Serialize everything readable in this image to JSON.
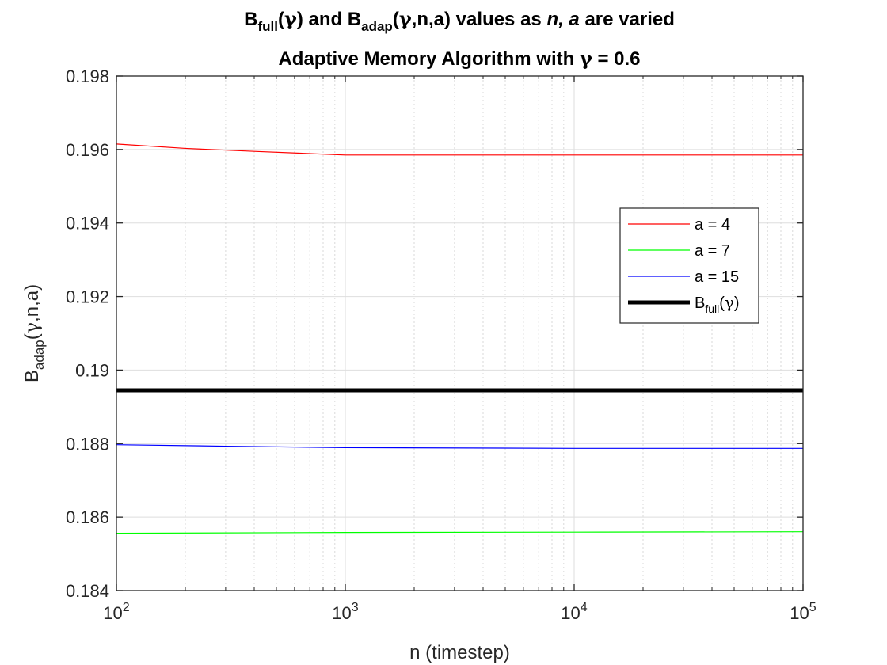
{
  "chart_data": {
    "type": "line",
    "title_lines": [
      [
        {
          "t": "B"
        },
        {
          "t": "full",
          "sub": true
        },
        {
          "t": "("
        },
        {
          "t": "γ",
          "sym": true
        },
        {
          "t": ") and B"
        },
        {
          "t": "adap",
          "sub": true
        },
        {
          "t": "("
        },
        {
          "t": "γ",
          "sym": true
        },
        {
          "t": ",n,a) values as  "
        },
        {
          "t": "n, a",
          "italic": true
        },
        {
          "t": " are varied"
        }
      ],
      [
        {
          "t": "Adaptive Memory Algorithm with "
        },
        {
          "t": "γ",
          "sym": true
        },
        {
          "t": " = 0.6"
        }
      ]
    ],
    "xlabel": "n (timestep)",
    "ylabel_parts": [
      {
        "t": "B"
      },
      {
        "t": "adap",
        "sub": true
      },
      {
        "t": "("
      },
      {
        "t": "γ",
        "sym": true
      },
      {
        "t": ",n,a)"
      }
    ],
    "x_scale": "log",
    "xlim": [
      100,
      100000
    ],
    "ylim": [
      0.184,
      0.198
    ],
    "x_ticks": [
      {
        "base": "10",
        "exp": "2"
      },
      {
        "base": "10",
        "exp": "3"
      },
      {
        "base": "10",
        "exp": "4"
      },
      {
        "base": "10",
        "exp": "5"
      }
    ],
    "y_ticks": [
      "0.184",
      "0.186",
      "0.188",
      "0.19",
      "0.192",
      "0.194",
      "0.196",
      "0.198"
    ],
    "grid": true,
    "legend_position": "right",
    "series": [
      {
        "name": "a = 4",
        "color": "#ff0000",
        "x": [
          100,
          200,
          400,
          1000,
          3000,
          10000,
          100000
        ],
        "y": [
          0.19615,
          0.19603,
          0.19595,
          0.19585,
          0.19585,
          0.19585,
          0.19585
        ]
      },
      {
        "name": "a = 7",
        "color": "#00ff00",
        "x": [
          100,
          1000,
          10000,
          100000
        ],
        "y": [
          0.18556,
          0.18558,
          0.18559,
          0.1856
        ]
      },
      {
        "name": "a = 15",
        "color": "#0000ff",
        "x": [
          100,
          300,
          1000,
          10000,
          100000
        ],
        "y": [
          0.18797,
          0.18793,
          0.18789,
          0.18787,
          0.18787
        ]
      }
    ],
    "reference_line": {
      "name_parts": [
        {
          "t": "B"
        },
        {
          "t": "full",
          "sub": true
        },
        {
          "t": "("
        },
        {
          "t": "γ",
          "sym": true
        },
        {
          "t": ")"
        }
      ],
      "color": "#000000",
      "y": 0.18945
    }
  }
}
